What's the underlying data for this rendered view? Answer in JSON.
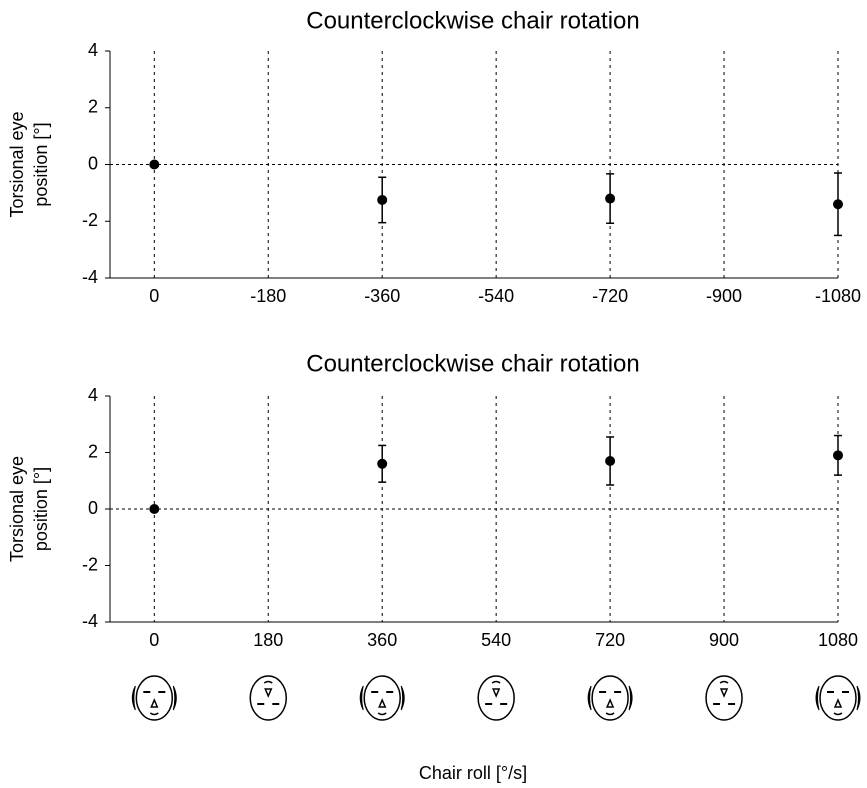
{
  "chart_data": [
    {
      "type": "scatter",
      "title": "Counterclockwise chair rotation",
      "ylabel": [
        "Torsional eye",
        "position [°]"
      ],
      "x": [
        0,
        -360,
        -720,
        -1080
      ],
      "values": [
        0,
        -1.25,
        -1.2,
        -1.4
      ],
      "errors": [
        0,
        0.8,
        0.87,
        1.1
      ],
      "color": "#000000",
      "xlim": [
        70,
        -1080
      ],
      "xticks": [
        0,
        -180,
        -360,
        -540,
        -720,
        -900,
        -1080
      ],
      "ylim": [
        -4,
        4
      ],
      "yticks": [
        -4,
        -2,
        0,
        2,
        4
      ],
      "grid": true,
      "zero_line": true
    },
    {
      "type": "scatter",
      "title": "Counterclockwise chair rotation",
      "ylabel": [
        "Torsional eye",
        "position [°]"
      ],
      "xlabel": "Chair roll [°/s]",
      "x": [
        0,
        360,
        720,
        1080
      ],
      "values": [
        0,
        1.6,
        1.7,
        1.9
      ],
      "errors": [
        0,
        0.65,
        0.85,
        0.7
      ],
      "color": "#000000",
      "xlim": [
        -70,
        1080
      ],
      "xticks": [
        0,
        180,
        360,
        540,
        720,
        900,
        1080
      ],
      "ylim": [
        -4,
        4
      ],
      "yticks": [
        -4,
        -2,
        0,
        2,
        4
      ],
      "grid": true,
      "zero_line": true
    }
  ]
}
